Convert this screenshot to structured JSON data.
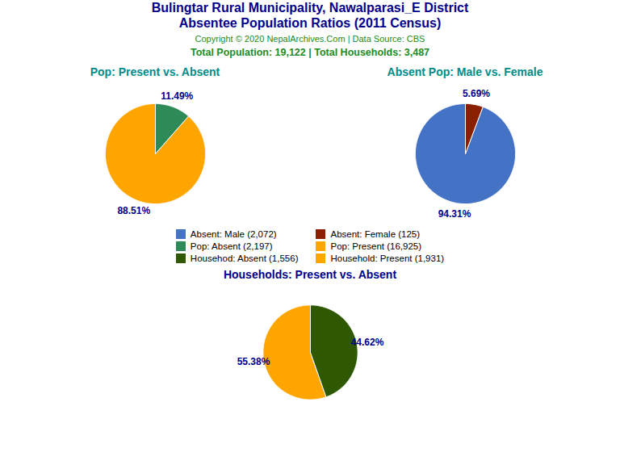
{
  "title": "Bulingtar Rural Municipality, Nawalparasi_E District",
  "subtitle": "Absentee Population Ratios (2011 Census)",
  "annotations": [
    "Copyright © 2020 NepalArchives.Com | Data Source: CBS",
    "Total Population: 19,122 | Total Households: 3,487"
  ],
  "series": [
    {
      "name": "Absent: Male (2,072)",
      "color": "#4472C4"
    },
    {
      "name": "Absent: Female (125)",
      "color": "#8B2000"
    },
    {
      "name": "Pop: Absent (2,197)",
      "color": "#2E8B57"
    },
    {
      "name": "Pop: Present (16,925)",
      "color": "#FFA500"
    },
    {
      "name": "Househod: Absent (1,556)",
      "color": "#2E5902"
    },
    {
      "name": "Household: Present (1,931)",
      "color": "#FFA500"
    }
  ],
  "chart_data": [
    {
      "type": "pie",
      "title": "Pop: Present vs. Absent",
      "values": [
        88.51,
        11.49
      ],
      "value_labels": [
        "88.51%",
        "11.49%"
      ],
      "colors": [
        "#FFA500",
        "#2E8B57"
      ],
      "data_labels": true
    },
    {
      "type": "pie",
      "title": "Absent Pop: Male vs. Female",
      "values": [
        94.31,
        5.69
      ],
      "value_labels": [
        "94.31%",
        "5.69%"
      ],
      "colors": [
        "#4472C4",
        "#8B2000"
      ],
      "data_labels": true
    },
    {
      "type": "pie",
      "title": "Households: Present vs. Absent",
      "values": [
        55.38,
        44.62
      ],
      "value_labels": [
        "55.38%",
        "44.62%"
      ],
      "colors": [
        "#FFA500",
        "#2E5902"
      ],
      "data_labels": true
    }
  ]
}
